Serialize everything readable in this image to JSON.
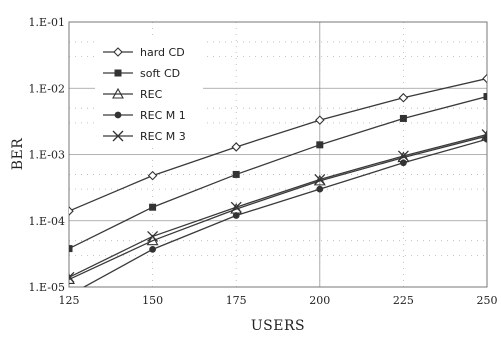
{
  "chart_data": {
    "type": "line",
    "title": "",
    "xlabel": "USERS",
    "ylabel": "BER",
    "x": [
      125,
      150,
      175,
      200,
      225,
      250
    ],
    "x_tick_labels": [
      "125",
      "150",
      "175",
      "200",
      "225",
      "250"
    ],
    "y_tick_values": [
      1e-05,
      0.0001,
      0.001,
      0.01,
      0.1
    ],
    "y_tick_labels": [
      "1.E-05",
      "1.E-04",
      "1.E-03",
      "1.E-02",
      "1.E-01"
    ],
    "xlim": [
      125,
      250
    ],
    "ylim": [
      1e-05,
      0.1
    ],
    "y_scale": "log",
    "grid": true,
    "legend_position": "top-left",
    "series": [
      {
        "name": "hard CD",
        "marker": "diamond",
        "values": [
          0.00014,
          0.00048,
          0.0013,
          0.0033,
          0.0072,
          0.014
        ]
      },
      {
        "name": "soft CD",
        "marker": "square-filled",
        "values": [
          3.8e-05,
          0.00016,
          0.0005,
          0.0014,
          0.0035,
          0.0075
        ]
      },
      {
        "name": "REC",
        "marker": "triangle",
        "values": [
          1.3e-05,
          5e-05,
          0.00015,
          0.0004,
          0.0009,
          0.0019
        ]
      },
      {
        "name": "REC M 1",
        "marker": "circle-filled",
        "values": [
          7.5e-06,
          3.7e-05,
          0.00012,
          0.0003,
          0.00075,
          0.0017
        ]
      },
      {
        "name": "REC M 3",
        "marker": "x",
        "values": [
          1.4e-05,
          5.8e-05,
          0.00016,
          0.00042,
          0.00095,
          0.002
        ]
      }
    ]
  }
}
